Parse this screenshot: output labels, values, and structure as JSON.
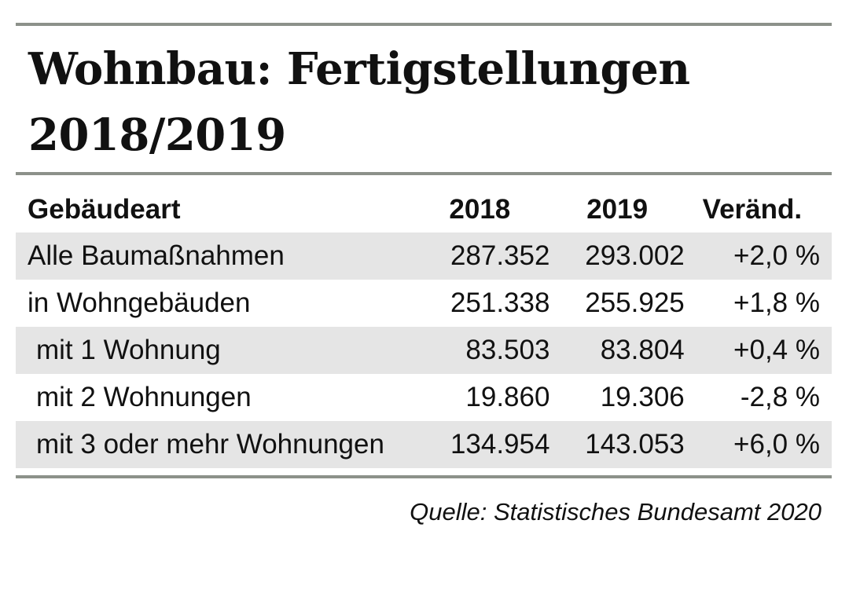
{
  "title_line1": "Wohnbau: Fertigstellungen",
  "title_line2": "2018/2019",
  "chart_data": {
    "type": "table",
    "title": "Wohnbau: Fertigstellungen 2018/2019",
    "columns": [
      "Gebäudeart",
      "2018",
      "2019",
      "Veränd."
    ],
    "rows": [
      {
        "label": "Alle Baumaßnahmen",
        "v2018": "287.352",
        "v2019": "293.002",
        "change": "+2,0 %",
        "indent": false
      },
      {
        "label": "in Wohngebäuden",
        "v2018": "251.338",
        "v2019": "255.925",
        "change": "+1,8 %",
        "indent": false
      },
      {
        "label": "mit 1 Wohnung",
        "v2018": "83.503",
        "v2019": "83.804",
        "change": "+0,4 %",
        "indent": true
      },
      {
        "label": "mit 2 Wohnungen",
        "v2018": "19.860",
        "v2019": "19.306",
        "change": "-2,8 %",
        "indent": true
      },
      {
        "label": "mit 3 oder mehr Wohnungen",
        "v2018": "134.954",
        "v2019": "143.053",
        "change": "+6,0 %",
        "indent": true
      }
    ],
    "source": "Quelle: Statistisches Bundesamt 2020"
  },
  "colors": {
    "rule": "#8c918a",
    "row_shade": "#e5e5e5"
  }
}
